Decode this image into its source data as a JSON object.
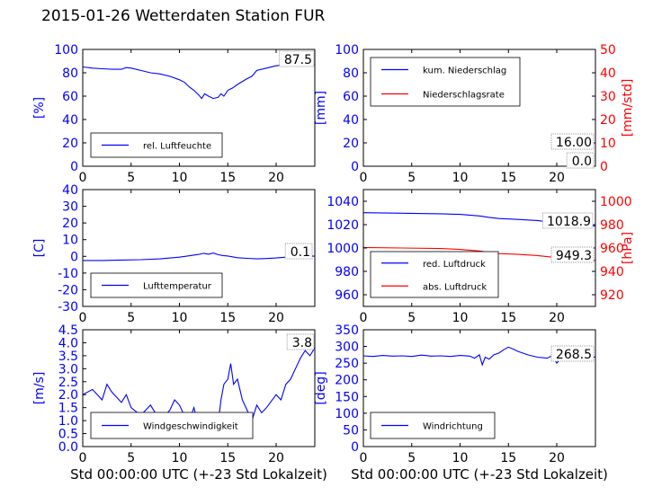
{
  "title": "2015-01-26 Wetterdaten Station FUR",
  "xlabel": "Std 00:00:00 UTC (+-23 Std Lokalzeit)",
  "chart_data": [
    {
      "type": "line",
      "ylabel": "[%]",
      "ylim": [
        0,
        100
      ],
      "yticks": [
        0,
        20,
        40,
        60,
        80,
        100
      ],
      "xlim": [
        0,
        24
      ],
      "xticks": [
        0,
        5,
        10,
        15,
        20
      ],
      "series": [
        {
          "name": "rel. Luftfeuchte",
          "color": "#0000ff",
          "x": [
            0,
            1,
            2,
            3,
            4,
            4.5,
            5,
            6,
            7,
            8,
            9,
            10,
            10.5,
            11,
            11.5,
            12,
            12.3,
            12.6,
            13,
            13.5,
            14,
            14.3,
            14.6,
            15,
            15.5,
            16,
            17,
            17.5,
            18,
            19,
            20,
            21,
            22,
            23,
            24
          ],
          "y": [
            85,
            84,
            83.5,
            83,
            83,
            84.5,
            84,
            82,
            80,
            79,
            77,
            74,
            72,
            68,
            65,
            61,
            58,
            62,
            60,
            58,
            59,
            62,
            60,
            65,
            67,
            70,
            75,
            77,
            82,
            84,
            86,
            87,
            87.5,
            87.5,
            87.5
          ]
        }
      ],
      "annotations": [
        "87.5"
      ],
      "legend": "lower-left"
    },
    {
      "type": "line",
      "ylabel": "[mm]",
      "ylabel_right": "[mm/std]",
      "ylim": [
        0,
        100
      ],
      "yticks": [
        0,
        20,
        40,
        60,
        80,
        100
      ],
      "ylim_right": [
        0,
        50
      ],
      "yticks_right": [
        0,
        10,
        20,
        30,
        40,
        50
      ],
      "xlim": [
        0,
        24
      ],
      "xticks": [
        0,
        5,
        10,
        15,
        20
      ],
      "series": [
        {
          "name": "kum. Niederschlag",
          "color": "#0000ff",
          "axis": "left",
          "x": [
            0,
            24
          ],
          "y": [
            0,
            0
          ]
        },
        {
          "name": "Niederschlagsrate",
          "color": "#ff0000",
          "axis": "right",
          "x": [
            0,
            24
          ],
          "y": [
            0,
            0
          ]
        }
      ],
      "annotations": [
        "16.00",
        "0.0"
      ],
      "legend": "top-left"
    },
    {
      "type": "line",
      "ylabel": "[C]",
      "ylim": [
        -30,
        40
      ],
      "yticks": [
        -30,
        -20,
        -10,
        0,
        10,
        20,
        30,
        40
      ],
      "xlim": [
        0,
        24
      ],
      "xticks": [
        0,
        5,
        10,
        15,
        20
      ],
      "series": [
        {
          "name": "Lufttemperatur",
          "color": "#0000ff",
          "x": [
            0,
            2,
            4,
            6,
            8,
            10,
            11,
            12,
            12.5,
            13,
            13.5,
            14,
            14.5,
            15,
            16,
            17,
            18,
            19,
            20,
            21,
            22,
            23,
            24
          ],
          "y": [
            -2.5,
            -2.5,
            -2.2,
            -2,
            -1.5,
            -0.5,
            0.3,
            1.2,
            1.8,
            1.3,
            2,
            1,
            0.5,
            0.2,
            -0.8,
            -1.2,
            -1.5,
            -1.3,
            -1,
            -0.5,
            0,
            0.1,
            0.1
          ]
        }
      ],
      "annotations": [
        "0.1"
      ],
      "legend": "lower-left"
    },
    {
      "type": "line",
      "ylabel_right": "[hPa]",
      "ylim": [
        950,
        1050
      ],
      "yticks": [
        960,
        980,
        1000,
        1020,
        1040
      ],
      "ylim_right": [
        910,
        1010
      ],
      "yticks_right": [
        920,
        940,
        960,
        980,
        1000
      ],
      "xlim": [
        0,
        24
      ],
      "xticks": [
        0,
        5,
        10,
        15,
        20
      ],
      "series": [
        {
          "name": "red. Luftdruck",
          "color": "#0000ff",
          "axis": "left",
          "x": [
            0,
            4,
            8,
            10,
            12,
            13,
            14,
            16,
            18,
            20,
            22,
            24
          ],
          "y": [
            1030.2,
            1029.8,
            1029.3,
            1028.8,
            1027.5,
            1026.2,
            1025.2,
            1024.5,
            1023.5,
            1021.5,
            1019.5,
            1018.9
          ]
        },
        {
          "name": "abs. Luftdruck",
          "color": "#ff0000",
          "axis": "right",
          "x": [
            0,
            4,
            8,
            10,
            12,
            13,
            14,
            16,
            18,
            20,
            22,
            24
          ],
          "y": [
            960.5,
            960,
            959.5,
            958.8,
            957.5,
            956.2,
            955.2,
            954.5,
            953.5,
            951.8,
            950,
            949.3
          ]
        }
      ],
      "annotations": [
        "1018.9",
        "949.3"
      ],
      "legend": "lower-left"
    },
    {
      "type": "line",
      "ylabel": "[m/s]",
      "ylim": [
        0,
        4.5
      ],
      "yticks": [
        0.0,
        0.5,
        1.0,
        1.5,
        2.0,
        2.5,
        3.0,
        3.5,
        4.0,
        4.5
      ],
      "xlim": [
        0,
        24
      ],
      "xticks": [
        0,
        5,
        10,
        15,
        20
      ],
      "series": [
        {
          "name": "Windgeschwindigkeit",
          "color": "#0000ff",
          "x": [
            0,
            1,
            2,
            2.5,
            3,
            4,
            4.5,
            5,
            6,
            7,
            7.5,
            8,
            9,
            9.5,
            10,
            10.5,
            11,
            11.5,
            12,
            12.5,
            13,
            13.5,
            14,
            14.3,
            14.6,
            15,
            15.3,
            15.6,
            16,
            16.5,
            17,
            17.5,
            18,
            18.5,
            19,
            20,
            20.5,
            21,
            21.5,
            22,
            22.5,
            23,
            23.5,
            24
          ],
          "y": [
            2.0,
            2.2,
            1.8,
            2.4,
            2.1,
            1.7,
            2.0,
            1.5,
            1.2,
            1.6,
            1.3,
            1.0,
            1.4,
            1.8,
            1.6,
            1.2,
            1.0,
            1.5,
            0.8,
            1.1,
            0.7,
            1.0,
            0.9,
            1.8,
            2.4,
            2.6,
            3.2,
            2.4,
            2.6,
            1.8,
            1.4,
            1.0,
            1.6,
            1.3,
            1.5,
            2.0,
            1.8,
            2.4,
            2.6,
            3.0,
            3.4,
            3.7,
            3.5,
            3.8
          ]
        }
      ],
      "annotations": [
        "3.8"
      ],
      "legend": "lower-center"
    },
    {
      "type": "line",
      "ylabel": "[deg]",
      "ylim": [
        0,
        350
      ],
      "yticks": [
        0,
        50,
        100,
        150,
        200,
        250,
        300,
        350
      ],
      "xlim": [
        0,
        24
      ],
      "xticks": [
        0,
        5,
        10,
        15,
        20
      ],
      "series": [
        {
          "name": "Windrichtung",
          "color": "#0000ff",
          "x": [
            0,
            1,
            2,
            3,
            4,
            5,
            6,
            7,
            8,
            9,
            10,
            11,
            11.5,
            12,
            12.3,
            12.6,
            13,
            13.5,
            14,
            14.5,
            15,
            15.5,
            16,
            16.5,
            17,
            18,
            19,
            19.5,
            20,
            20.3,
            20.6,
            21,
            22,
            23,
            24
          ],
          "y": [
            272,
            270,
            273,
            271,
            272,
            270,
            274,
            271,
            272,
            270,
            273,
            271,
            265,
            275,
            245,
            268,
            262,
            275,
            280,
            290,
            298,
            292,
            285,
            280,
            275,
            268,
            265,
            272,
            250,
            260,
            275,
            270,
            268,
            270,
            268.5
          ]
        }
      ],
      "annotations": [
        "268.5"
      ],
      "legend": "lower-left"
    }
  ]
}
